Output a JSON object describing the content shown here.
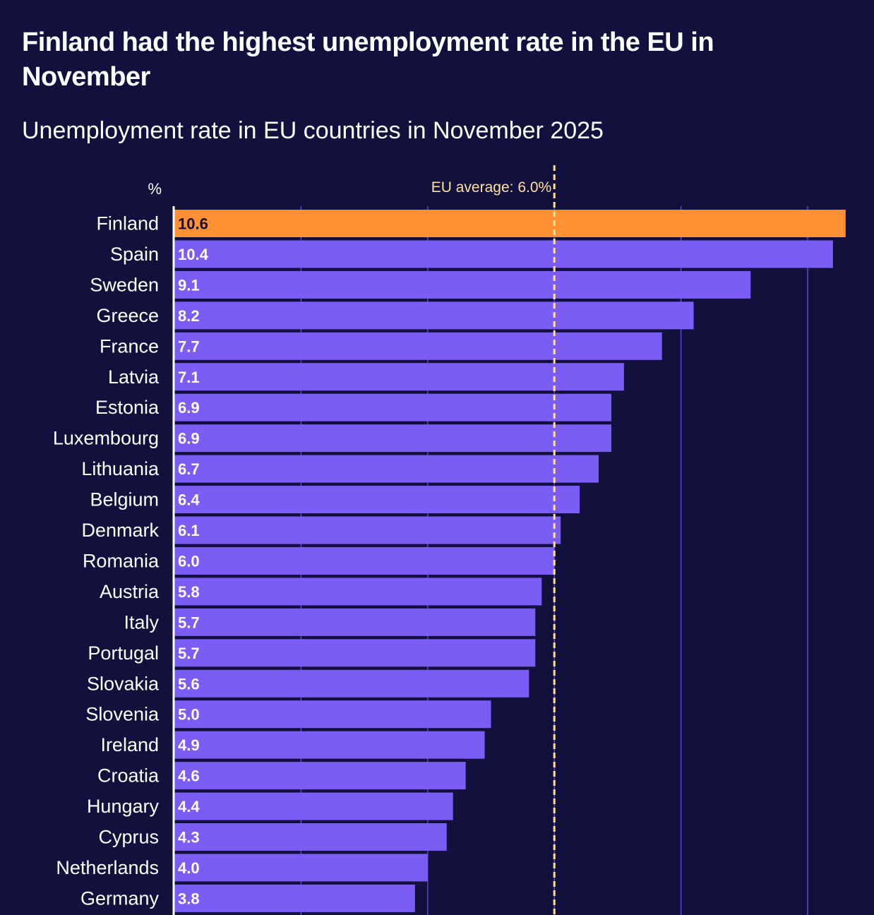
{
  "title": "Finland had the highest unemployment rate in the EU in November",
  "subtitle": "Unemployment rate in EU countries in November 2025",
  "colors": {
    "background": "#12103d",
    "highlight": "#ff9033",
    "bar": "#7b5cf5",
    "average_line": "#ffe09a",
    "grid": "#5a48c8"
  },
  "chart_data": {
    "type": "bar",
    "orientation": "horizontal",
    "title": "Finland had the highest unemployment rate in the EU in November",
    "subtitle": "Unemployment rate in EU countries in November 2025",
    "xlabel": "%",
    "xlim": [
      0,
      10.6
    ],
    "grid": true,
    "gridlines": [
      2,
      4,
      6,
      8,
      10
    ],
    "highlight": "Finland",
    "reference_line": {
      "value": 6.0,
      "label": "EU average: 6.0%"
    },
    "categories": [
      "Finland",
      "Spain",
      "Sweden",
      "Greece",
      "France",
      "Latvia",
      "Estonia",
      "Luxembourg",
      "Lithuania",
      "Belgium",
      "Denmark",
      "Romania",
      "Austria",
      "Italy",
      "Portugal",
      "Slovakia",
      "Slovenia",
      "Ireland",
      "Croatia",
      "Hungary",
      "Cyprus",
      "Netherlands",
      "Germany"
    ],
    "values": [
      10.6,
      10.4,
      9.1,
      8.2,
      7.7,
      7.1,
      6.9,
      6.9,
      6.7,
      6.4,
      6.1,
      6.0,
      5.8,
      5.7,
      5.7,
      5.6,
      5.0,
      4.9,
      4.6,
      4.4,
      4.3,
      4.0,
      3.8
    ],
    "value_labels": [
      "10.6",
      "10.4",
      "9.1",
      "8.2",
      "7.7",
      "7.1",
      "6.9",
      "6.9",
      "6.7",
      "6.4",
      "6.1",
      "6.0",
      "5.8",
      "5.7",
      "5.7",
      "5.6",
      "5.0",
      "4.9",
      "4.6",
      "4.4",
      "4.3",
      "4.0",
      "3.8"
    ]
  }
}
